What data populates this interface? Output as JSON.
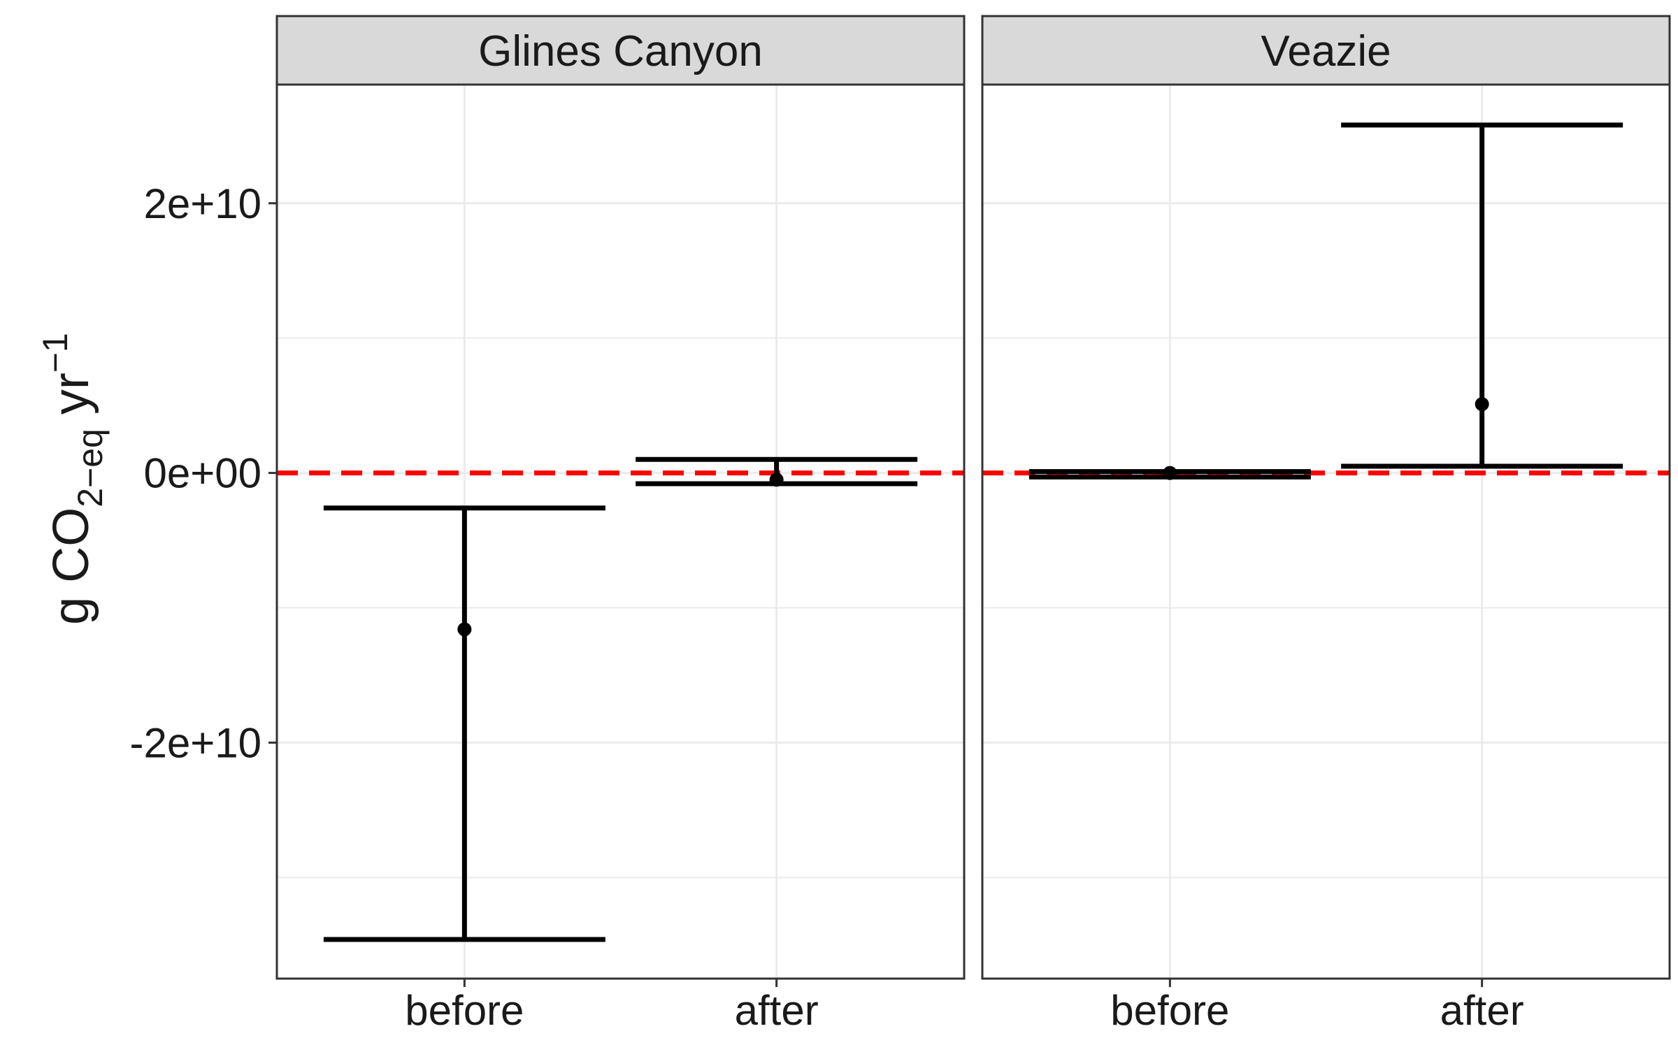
{
  "chart_data": {
    "type": "errorbar",
    "ylabel": {
      "prefix": "g CO",
      "subscript": "2−eq",
      "unit": " yr",
      "superscript": "−1"
    },
    "categories": [
      "before",
      "after"
    ],
    "y_ticks": [
      {
        "value": 20000000000,
        "label": "2e+10"
      },
      {
        "value": 0,
        "label": "0e+00"
      },
      {
        "value": -20000000000,
        "label": "-2e+10"
      }
    ],
    "ylim": [
      -37500000000,
      28800000000
    ],
    "grid": true,
    "reference_line": {
      "value": 0,
      "color": "#ff0000",
      "style": "dashed"
    },
    "panels": [
      {
        "title": "Glines Canyon",
        "points": [
          {
            "x": "before",
            "y": -11600000000,
            "lower": -34600000000,
            "upper": -2600000000
          },
          {
            "x": "after",
            "y": -500000000,
            "lower": -800000000,
            "upper": 1000000000
          }
        ]
      },
      {
        "title": "Veazie",
        "points": [
          {
            "x": "before",
            "y": 0,
            "lower": -300000000,
            "upper": 100000000
          },
          {
            "x": "after",
            "y": 5100000000,
            "lower": 500000000,
            "upper": 25800000000
          }
        ]
      }
    ]
  }
}
